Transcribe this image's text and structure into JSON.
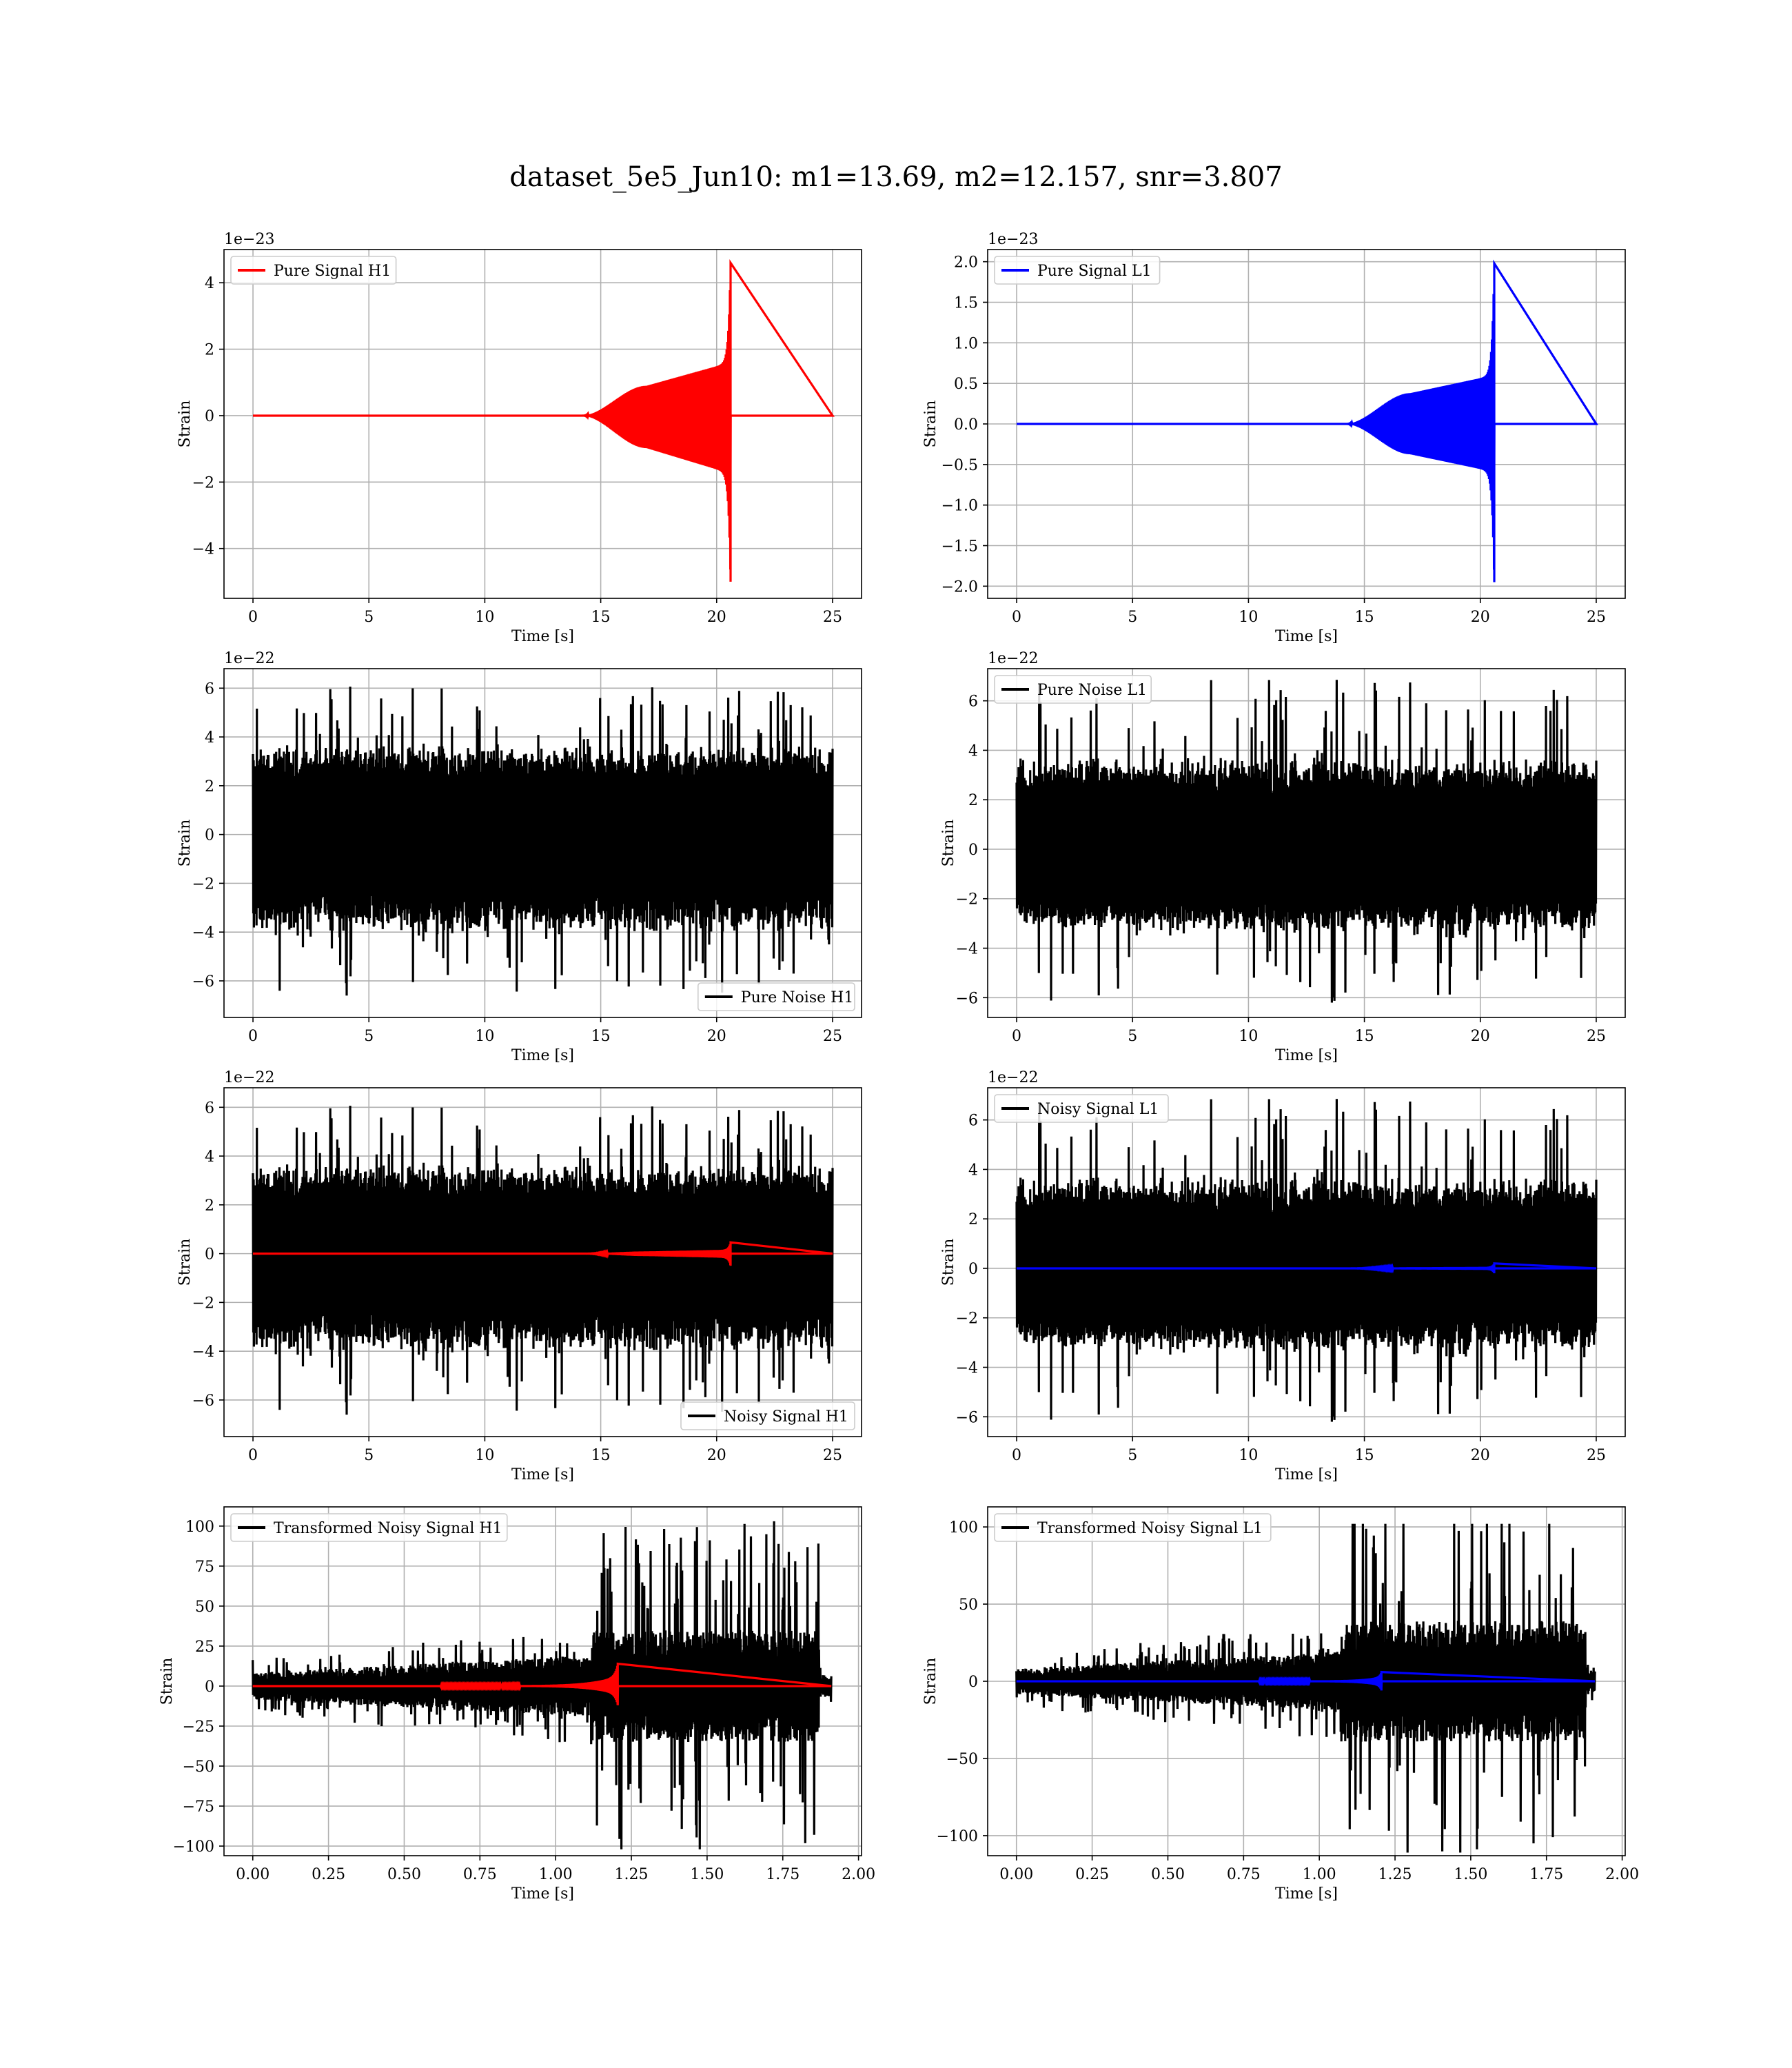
{
  "figure": {
    "title": "dataset_5e5_Jun10: m1=13.69, m2=12.157, snr=3.807"
  },
  "colors": {
    "h1_signal": "#ff0000",
    "l1_signal": "#0000ff",
    "noise": "#000000",
    "grid": "#b0b0b0",
    "legend_border": "#cccccc"
  },
  "chart_data": [
    {
      "type": "line",
      "title": "",
      "xlabel": "Time [s]",
      "ylabel": "Strain",
      "y_offset_text": "1e−23",
      "xlim": [
        -1.25,
        26.25
      ],
      "ylim": [
        -5.5,
        5.0
      ],
      "x_ticks": [
        0,
        5,
        10,
        15,
        20,
        25
      ],
      "x_tick_labels": [
        "0",
        "5",
        "10",
        "15",
        "20",
        "25"
      ],
      "y_ticks": [
        -4,
        -2,
        0,
        2,
        4
      ],
      "y_tick_labels": [
        "−4",
        "−2",
        "0",
        "2",
        "4"
      ],
      "grid": true,
      "legend_position": "upper left",
      "series": [
        {
          "name": "Pure Signal H1",
          "color": "#ff0000",
          "kind": "chirp",
          "x_start": 0,
          "x_end": 25,
          "onset": 14.2,
          "plateau": 17.0,
          "merger": 20.6,
          "plateau_amp": 0.9,
          "pre_merger_amp": 1.6,
          "peak_pos": 4.6,
          "peak_neg": -5.0
        }
      ]
    },
    {
      "type": "line",
      "title": "",
      "xlabel": "Time [s]",
      "ylabel": "Strain",
      "y_offset_text": "1e−23",
      "xlim": [
        -1.25,
        26.25
      ],
      "ylim": [
        -2.15,
        2.15
      ],
      "x_ticks": [
        0,
        5,
        10,
        15,
        20,
        25
      ],
      "x_tick_labels": [
        "0",
        "5",
        "10",
        "15",
        "20",
        "25"
      ],
      "y_ticks": [
        -2.0,
        -1.5,
        -1.0,
        -0.5,
        0.0,
        0.5,
        1.0,
        1.5,
        2.0
      ],
      "y_tick_labels": [
        "−2.0",
        "−1.5",
        "−1.0",
        "−0.5",
        "0.0",
        "0.5",
        "1.0",
        "1.5",
        "2.0"
      ],
      "grid": true,
      "legend_position": "upper left",
      "series": [
        {
          "name": "Pure Signal L1",
          "color": "#0000ff",
          "kind": "chirp",
          "x_start": 0,
          "x_end": 25,
          "onset": 14.2,
          "plateau": 17.0,
          "merger": 20.6,
          "plateau_amp": 0.38,
          "pre_merger_amp": 0.6,
          "peak_pos": 1.98,
          "peak_neg": -1.95
        }
      ]
    },
    {
      "type": "line",
      "title": "",
      "xlabel": "Time [s]",
      "ylabel": "Strain",
      "y_offset_text": "1e−22",
      "xlim": [
        -1.25,
        26.25
      ],
      "ylim": [
        -7.5,
        6.8
      ],
      "x_ticks": [
        0,
        5,
        10,
        15,
        20,
        25
      ],
      "x_tick_labels": [
        "0",
        "5",
        "10",
        "15",
        "20",
        "25"
      ],
      "y_ticks": [
        -6,
        -4,
        -2,
        0,
        2,
        4,
        6
      ],
      "y_tick_labels": [
        "−6",
        "−4",
        "−2",
        "0",
        "2",
        "4",
        "6"
      ],
      "grid": true,
      "legend_position": "lower right",
      "series": [
        {
          "name": "Pure Noise H1",
          "color": "#000000",
          "kind": "noise",
          "x_start": 0,
          "x_end": 25,
          "band_pos": 3.0,
          "band_neg": -3.0,
          "max": 6.1,
          "min": -6.6,
          "seed": 11
        }
      ]
    },
    {
      "type": "line",
      "title": "",
      "xlabel": "Time [s]",
      "ylabel": "Strain",
      "y_offset_text": "1e−22",
      "xlim": [
        -1.25,
        26.25
      ],
      "ylim": [
        -6.8,
        7.3
      ],
      "x_ticks": [
        0,
        5,
        10,
        15,
        20,
        25
      ],
      "x_tick_labels": [
        "0",
        "5",
        "10",
        "15",
        "20",
        "25"
      ],
      "y_ticks": [
        -6,
        -4,
        -2,
        0,
        2,
        4,
        6
      ],
      "y_tick_labels": [
        "−6",
        "−4",
        "−2",
        "0",
        "2",
        "4",
        "6"
      ],
      "grid": true,
      "legend_position": "upper left",
      "series": [
        {
          "name": "Pure Noise L1",
          "color": "#000000",
          "kind": "noise",
          "x_start": 0,
          "x_end": 25,
          "band_pos": 3.0,
          "band_neg": -3.0,
          "max": 6.9,
          "min": -6.2,
          "seed": 23
        }
      ]
    },
    {
      "type": "line",
      "title": "",
      "xlabel": "Time [s]",
      "ylabel": "Strain",
      "y_offset_text": "1e−22",
      "xlim": [
        -1.25,
        26.25
      ],
      "ylim": [
        -7.5,
        6.8
      ],
      "x_ticks": [
        0,
        5,
        10,
        15,
        20,
        25
      ],
      "x_tick_labels": [
        "0",
        "5",
        "10",
        "15",
        "20",
        "25"
      ],
      "y_ticks": [
        -6,
        -4,
        -2,
        0,
        2,
        4,
        6
      ],
      "y_tick_labels": [
        "−6",
        "−4",
        "−2",
        "0",
        "2",
        "4",
        "6"
      ],
      "grid": true,
      "legend_position": "lower right",
      "series": [
        {
          "name": "Noisy Signal H1",
          "color": "#000000",
          "kind": "noise",
          "x_start": 0,
          "x_end": 25,
          "band_pos": 3.0,
          "band_neg": -3.0,
          "max": 6.1,
          "min": -6.6,
          "seed": 11
        },
        {
          "color": "#ff0000",
          "kind": "chirp",
          "x_start": 0,
          "x_end": 25,
          "onset": 14.2,
          "plateau": 17.0,
          "merger": 20.6,
          "plateau_amp": 0.09,
          "pre_merger_amp": 0.16,
          "peak_pos": 0.46,
          "peak_neg": -0.5
        }
      ]
    },
    {
      "type": "line",
      "title": "",
      "xlabel": "Time [s]",
      "ylabel": "Strain",
      "y_offset_text": "1e−22",
      "xlim": [
        -1.25,
        26.25
      ],
      "ylim": [
        -6.8,
        7.3
      ],
      "x_ticks": [
        0,
        5,
        10,
        15,
        20,
        25
      ],
      "x_tick_labels": [
        "0",
        "5",
        "10",
        "15",
        "20",
        "25"
      ],
      "y_ticks": [
        -6,
        -4,
        -2,
        0,
        2,
        4,
        6
      ],
      "y_tick_labels": [
        "−6",
        "−4",
        "−2",
        "0",
        "2",
        "4",
        "6"
      ],
      "grid": true,
      "legend_position": "upper left",
      "series": [
        {
          "name": "Noisy Signal L1",
          "color": "#000000",
          "kind": "noise",
          "x_start": 0,
          "x_end": 25,
          "band_pos": 3.0,
          "band_neg": -3.0,
          "max": 6.9,
          "min": -6.2,
          "seed": 23
        },
        {
          "color": "#0000ff",
          "kind": "chirp",
          "x_start": 0,
          "x_end": 25,
          "onset": 14.2,
          "plateau": 17.0,
          "merger": 20.6,
          "plateau_amp": 0.04,
          "pre_merger_amp": 0.06,
          "peak_pos": 0.2,
          "peak_neg": -0.2
        }
      ]
    },
    {
      "type": "line",
      "title": "",
      "xlabel": "Time [s]",
      "ylabel": "Strain",
      "y_offset_text": "",
      "xlim": [
        -0.095,
        2.01
      ],
      "ylim": [
        -106,
        112
      ],
      "x_ticks": [
        0.0,
        0.25,
        0.5,
        0.75,
        1.0,
        1.25,
        1.5,
        1.75,
        2.0
      ],
      "x_tick_labels": [
        "0.00",
        "0.25",
        "0.50",
        "0.75",
        "1.00",
        "1.25",
        "1.50",
        "1.75",
        "2.00"
      ],
      "y_ticks": [
        -100,
        -75,
        -50,
        -25,
        0,
        25,
        50,
        75,
        100
      ],
      "y_tick_labels": [
        "−100",
        "−75",
        "−50",
        "−25",
        "0",
        "25",
        "50",
        "75",
        "100"
      ],
      "grid": true,
      "legend_position": "upper left",
      "series": [
        {
          "name": "Transformed Noisy Signal H1",
          "color": "#000000",
          "kind": "transformed",
          "x_start": 0,
          "x_end": 1.91,
          "jump": 1.12,
          "burst_end": 1.87,
          "early_amp": 6,
          "late_amp": 25,
          "end_amp": 5,
          "max": 103,
          "min": -102,
          "seed": 37
        },
        {
          "color": "#ff0000",
          "kind": "chirp",
          "x_start": 0,
          "x_end": 1.91,
          "onset": 0.62,
          "plateau": 0.62,
          "merger": 1.205,
          "plateau_amp": 0.5,
          "pre_merger_amp": 6,
          "peak_pos": 14,
          "peak_neg": -12
        }
      ]
    },
    {
      "type": "line",
      "title": "",
      "xlabel": "Time [s]",
      "ylabel": "Strain",
      "y_offset_text": "",
      "xlim": [
        -0.095,
        2.01
      ],
      "ylim": [
        -113,
        113
      ],
      "x_ticks": [
        0.0,
        0.25,
        0.5,
        0.75,
        1.0,
        1.25,
        1.5,
        1.75,
        2.0
      ],
      "x_tick_labels": [
        "0.00",
        "0.25",
        "0.50",
        "0.75",
        "1.00",
        "1.25",
        "1.50",
        "1.75",
        "2.00"
      ],
      "y_ticks": [
        -100,
        -50,
        0,
        50,
        100
      ],
      "y_tick_labels": [
        "−100",
        "−50",
        "0",
        "50",
        "100"
      ],
      "grid": true,
      "legend_position": "upper left",
      "series": [
        {
          "name": "Transformed Noisy Signal L1",
          "color": "#000000",
          "kind": "transformed",
          "x_start": 0,
          "x_end": 1.91,
          "jump": 1.07,
          "burst_end": 1.88,
          "early_amp": 6,
          "late_amp": 28,
          "end_amp": 5,
          "max": 102,
          "min": -111,
          "seed": 53
        },
        {
          "color": "#0000ff",
          "kind": "chirp",
          "x_start": 0,
          "x_end": 1.91,
          "onset": 0.8,
          "plateau": 0.8,
          "merger": 1.205,
          "plateau_amp": 0.5,
          "pre_merger_amp": 3,
          "peak_pos": 6,
          "peak_neg": -6
        }
      ]
    }
  ]
}
